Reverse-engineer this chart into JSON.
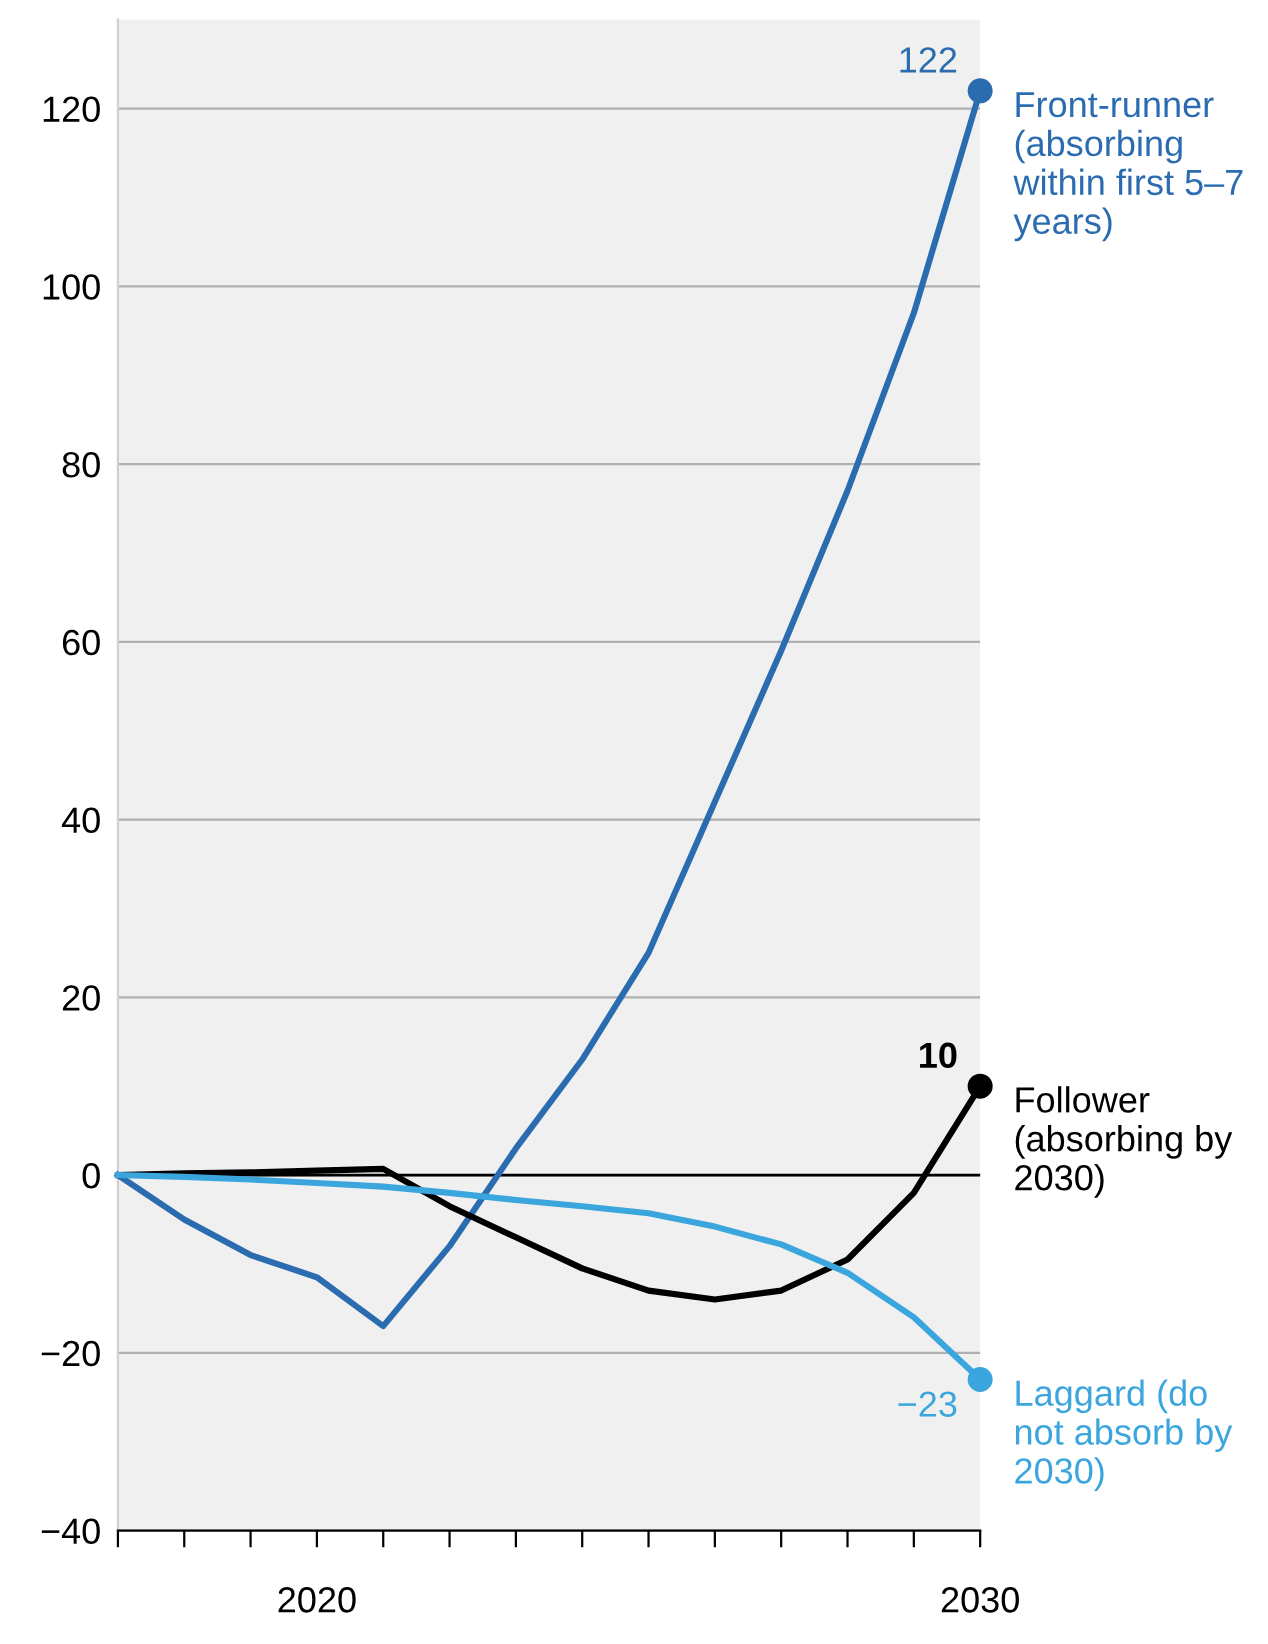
{
  "chart_data": {
    "type": "line",
    "x": [
      2017,
      2018,
      2019,
      2020,
      2021,
      2022,
      2023,
      2024,
      2025,
      2026,
      2027,
      2028,
      2029,
      2030
    ],
    "series": [
      {
        "name": "Front-runner (absorbing within first 5–7 years)",
        "color": "#2b6cb0",
        "values": [
          0,
          -5,
          -9,
          -11.5,
          -17,
          -8,
          3,
          13,
          25,
          42,
          59,
          77,
          97,
          122
        ],
        "value_labels": [
          null,
          null,
          null,
          null,
          null,
          null,
          null,
          null,
          null,
          null,
          null,
          null,
          null,
          "122"
        ]
      },
      {
        "name": "Follower (absorbing by 2030)",
        "color": "#000000",
        "values": [
          0,
          0.2,
          0.3,
          0.5,
          0.7,
          -3.5,
          -7,
          -10.5,
          -13,
          -14,
          -13,
          -9.5,
          -2,
          10
        ],
        "value_labels": [
          null,
          null,
          null,
          null,
          null,
          null,
          null,
          null,
          null,
          null,
          null,
          null,
          null,
          "10"
        ]
      },
      {
        "name": "Laggard (do not absorb by 2030)",
        "color": "#3aa6dd",
        "values": [
          0,
          -0.2,
          -0.5,
          -0.9,
          -1.3,
          -2,
          -2.8,
          -3.5,
          -4.3,
          -5.8,
          -7.8,
          -11,
          -16,
          -23
        ],
        "value_labels": [
          null,
          null,
          null,
          null,
          null,
          null,
          null,
          null,
          null,
          null,
          null,
          null,
          null,
          "−23"
        ]
      }
    ],
    "xlim": [
      2017,
      2030
    ],
    "xticks": [
      {
        "value": 2017,
        "label": null
      },
      {
        "value": 2018,
        "label": null
      },
      {
        "value": 2019,
        "label": null
      },
      2020,
      {
        "value": 2021,
        "label": null
      },
      {
        "value": 2022,
        "label": null
      },
      {
        "value": 2023,
        "label": null
      },
      {
        "value": 2024,
        "label": null
      },
      {
        "value": 2025,
        "label": null
      },
      {
        "value": 2026,
        "label": null
      },
      {
        "value": 2027,
        "label": null
      },
      {
        "value": 2028,
        "label": null
      },
      {
        "value": 2029,
        "label": null
      },
      2030
    ],
    "ylim": [
      -40,
      130
    ],
    "yticks": [
      {
        "value": -40,
        "label": "−40"
      },
      {
        "value": -20,
        "label": "−20"
      },
      0,
      20,
      40,
      60,
      80,
      100,
      120
    ],
    "grid": "y",
    "ref_lines": [
      {
        "axis": "y",
        "value": 0,
        "label": null,
        "color": "#000000"
      }
    ],
    "line_style": "solid",
    "legend": false
  }
}
